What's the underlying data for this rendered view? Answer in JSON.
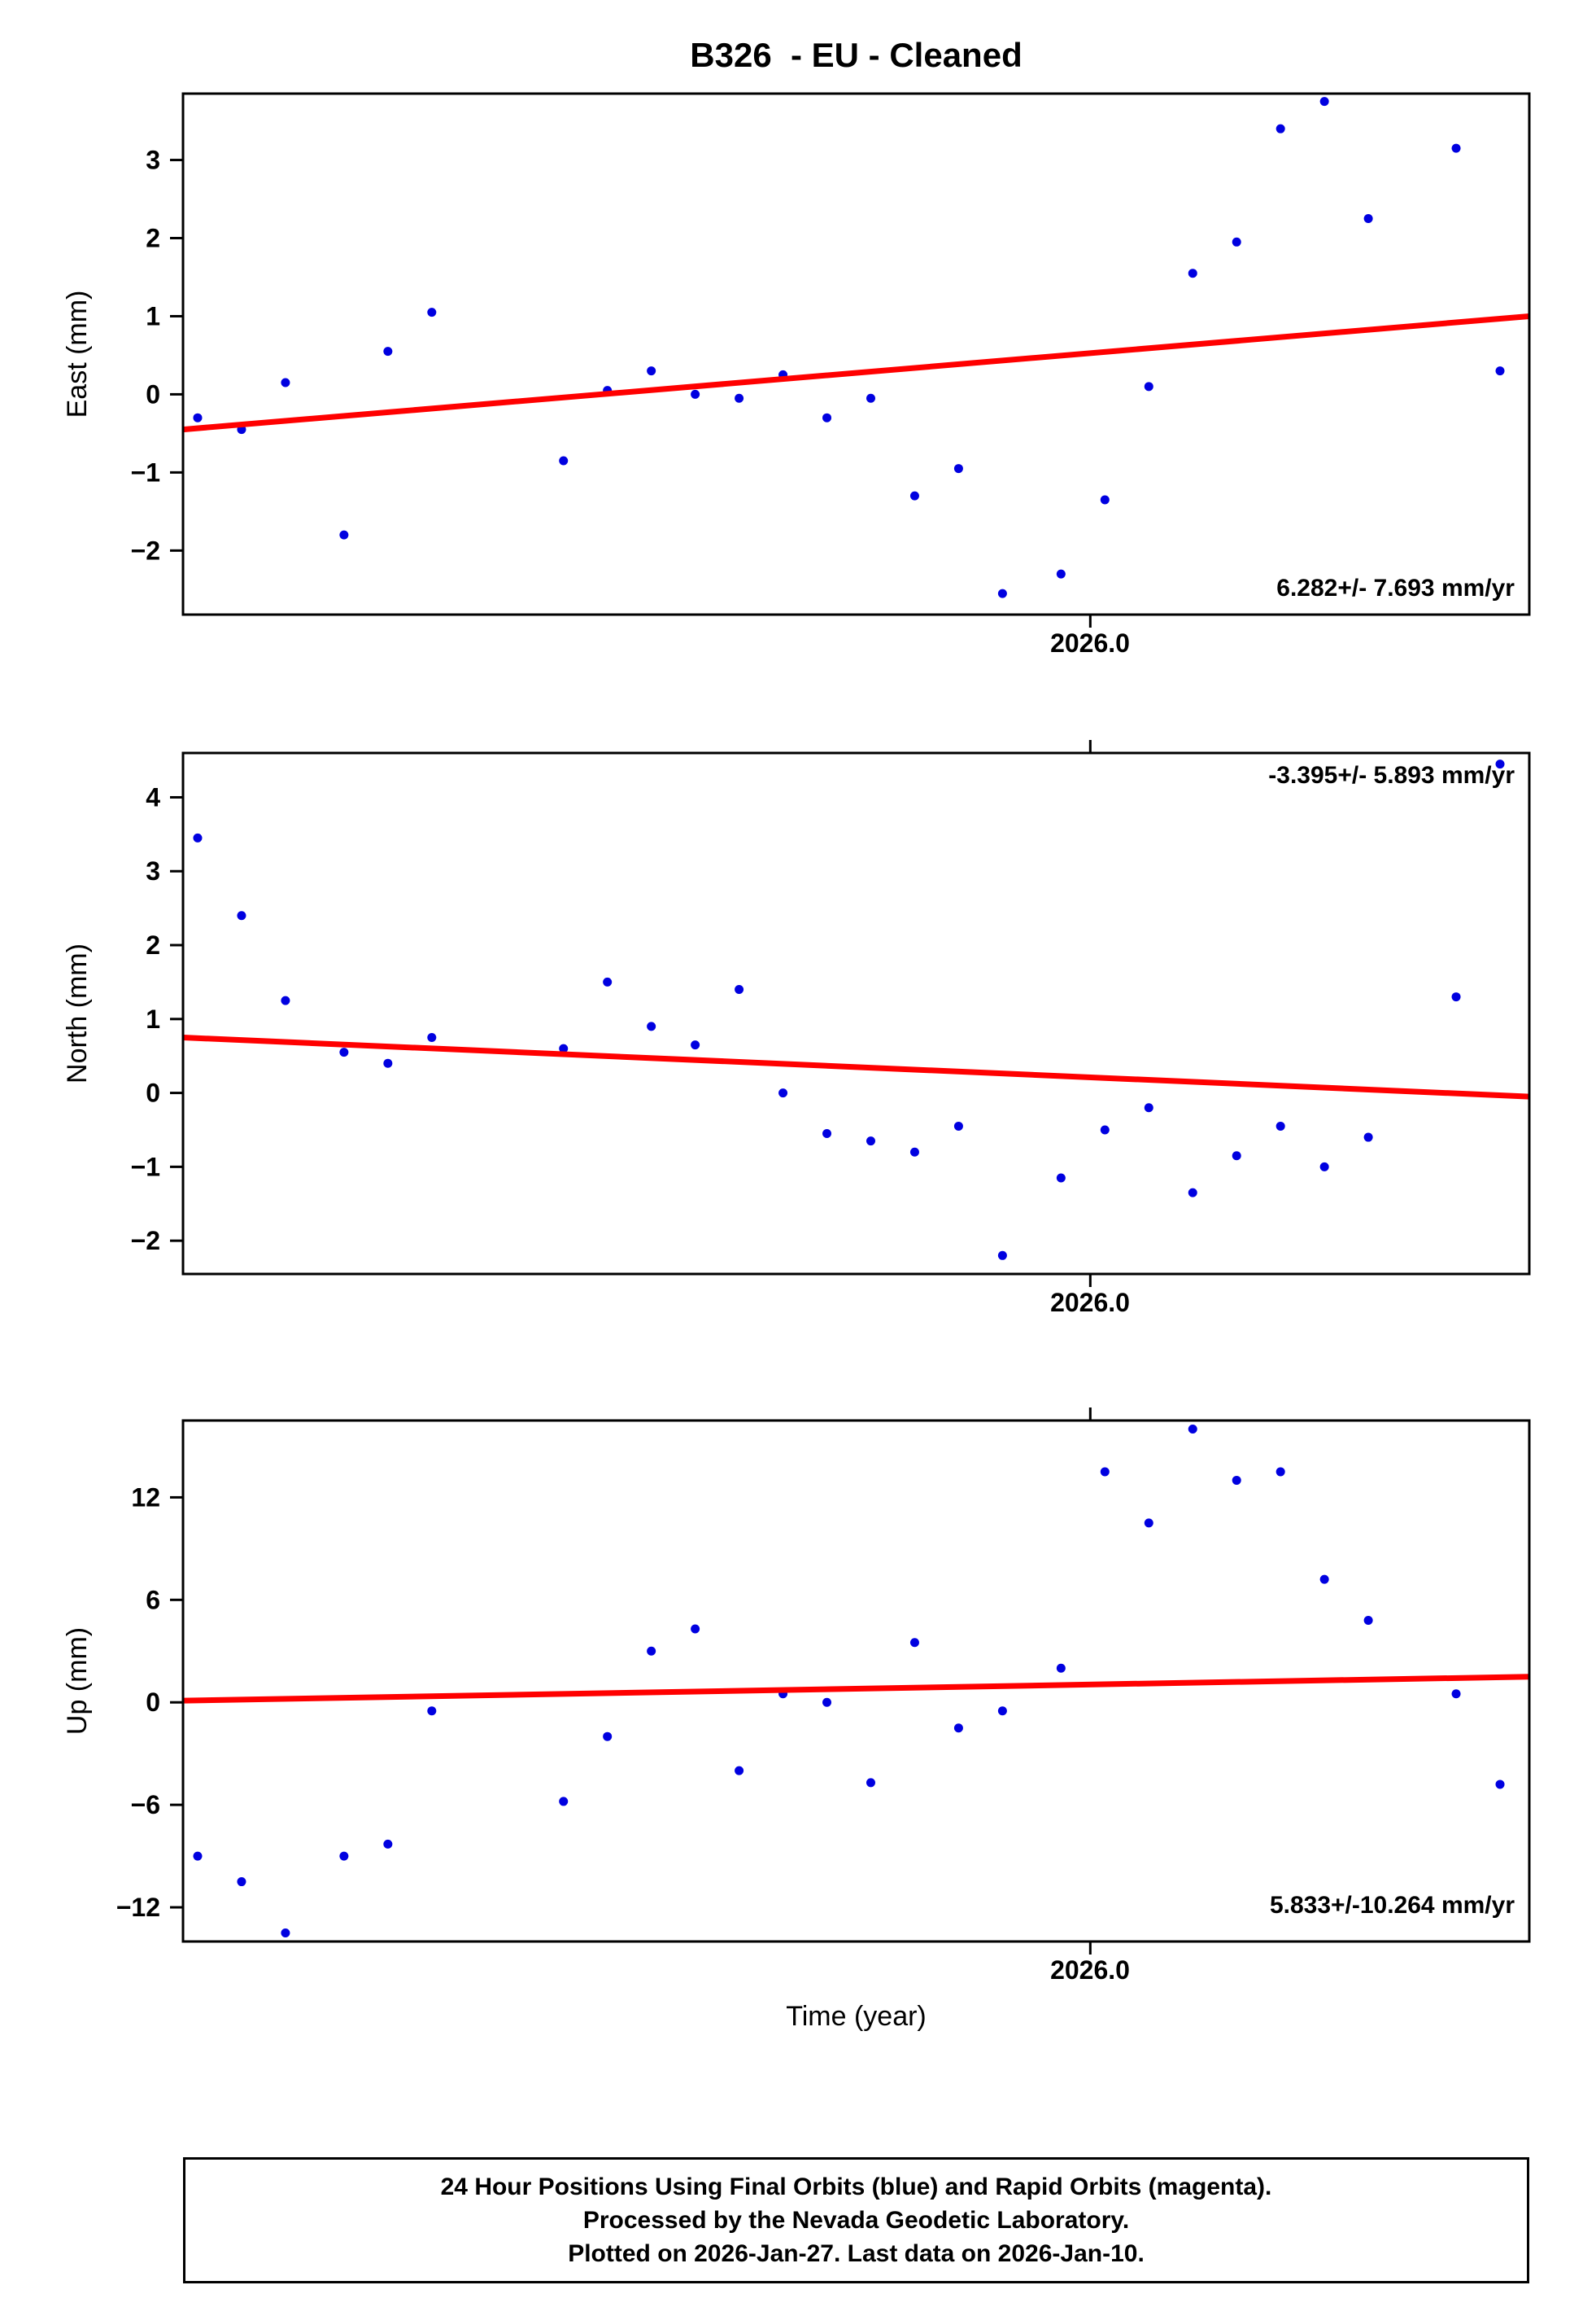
{
  "chart_data": {
    "type": "scatter",
    "title": "B326  - EU - Cleaned",
    "xlabel": "Time (year)",
    "xlim": [
      2025.938,
      2026.03
    ],
    "x_tick": {
      "value": 2026.0,
      "label": "2026.0"
    },
    "point_color": "#0000e0",
    "trend_color": "#ff0000",
    "x": [
      2025.939,
      2025.942,
      2025.945,
      2025.949,
      2025.952,
      2025.955,
      2025.964,
      2025.967,
      2025.97,
      2025.973,
      2025.976,
      2025.979,
      2025.982,
      2025.985,
      2025.988,
      2025.991,
      2025.994,
      2025.998,
      2026.001,
      2026.004,
      2026.007,
      2026.01,
      2026.013,
      2026.016,
      2026.019,
      2026.025,
      2026.028
    ],
    "panels": [
      {
        "name": "east",
        "ylabel": "East (mm)",
        "ylim": [
          -2.82,
          3.85
        ],
        "yticks": [
          -2,
          -1,
          0,
          1,
          2,
          3
        ],
        "tick_top": false,
        "values": [
          -0.3,
          -0.45,
          0.15,
          -1.8,
          0.55,
          1.05,
          -0.85,
          0.05,
          0.3,
          0.0,
          -0.05,
          0.25,
          -0.3,
          -0.05,
          -1.3,
          -0.95,
          -2.55,
          -2.3,
          -1.35,
          0.1,
          1.55,
          1.95,
          3.4,
          3.75,
          2.25,
          3.15,
          0.3
        ],
        "trend": [
          -0.45,
          1.0
        ],
        "rate_label": "6.282+/- 7.693 mm/yr"
      },
      {
        "name": "north",
        "ylabel": "North (mm)",
        "ylim": [
          -2.45,
          4.6
        ],
        "yticks": [
          -2,
          -1,
          0,
          1,
          2,
          3,
          4
        ],
        "tick_top": true,
        "values": [
          3.45,
          2.4,
          1.25,
          0.55,
          0.4,
          0.75,
          0.6,
          1.5,
          0.9,
          0.65,
          1.4,
          0.0,
          -0.55,
          -0.65,
          -0.8,
          -0.45,
          -2.2,
          -1.15,
          -0.5,
          -0.2,
          -1.35,
          -0.85,
          -0.45,
          -1.0,
          -0.6,
          1.3,
          4.45
        ],
        "trend": [
          0.75,
          -0.05
        ],
        "rate_label": "-3.395+/- 5.893 mm/yr"
      },
      {
        "name": "up",
        "ylabel": "Up (mm)",
        "ylim": [
          -14,
          16.5
        ],
        "yticks": [
          -12,
          -6,
          0,
          6,
          12
        ],
        "tick_top": true,
        "values": [
          -9.0,
          -10.5,
          -13.5,
          -9.0,
          -8.3,
          -0.5,
          -5.8,
          -2.0,
          3.0,
          4.3,
          -4.0,
          0.5,
          0.0,
          -4.7,
          3.5,
          -1.5,
          -0.5,
          2.0,
          13.5,
          10.5,
          16.0,
          13.0,
          13.5,
          7.2,
          4.8,
          0.5,
          -4.8
        ],
        "trend": [
          0.1,
          1.5
        ],
        "rate_label": "5.833+/-10.264 mm/yr"
      }
    ]
  },
  "footer": {
    "lines": [
      "24 Hour Positions Using Final Orbits (blue) and Rapid Orbits (magenta).",
      "Processed by the Nevada Geodetic Laboratory.",
      "Plotted on 2026-Jan-27. Last data on 2026-Jan-10."
    ]
  }
}
